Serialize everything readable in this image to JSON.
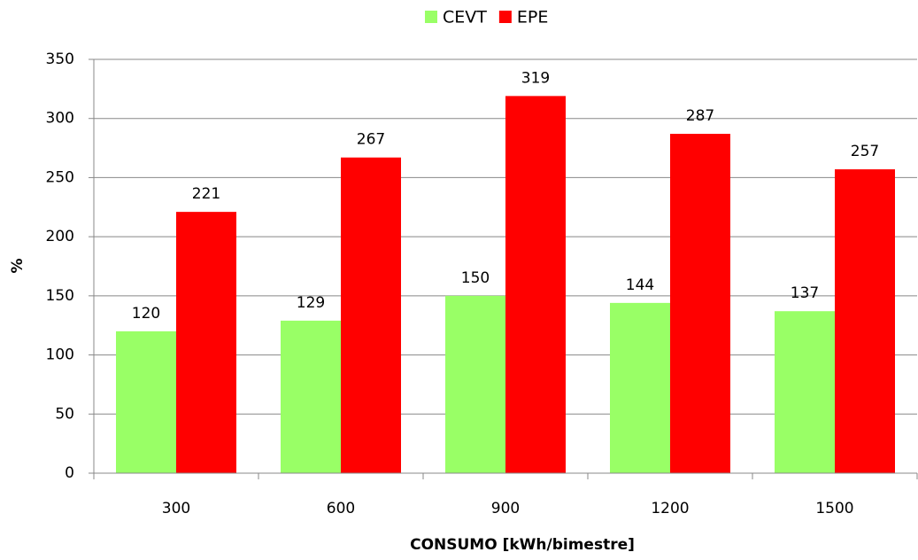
{
  "chart_data": {
    "type": "bar",
    "categories": [
      "300",
      "600",
      "900",
      "1200",
      "1500"
    ],
    "series": [
      {
        "name": "CEVT",
        "color": "#99ff66",
        "values": [
          120,
          129,
          150,
          144,
          137
        ]
      },
      {
        "name": "EPE",
        "color": "#ff0000",
        "values": [
          221,
          267,
          319,
          287,
          257
        ]
      }
    ],
    "xlabel": "CONSUMO [kWh/bimestre]",
    "ylabel": "%",
    "ylim": [
      0,
      350
    ],
    "yticks": [
      0,
      50,
      100,
      150,
      200,
      250,
      300,
      350
    ],
    "grid": true,
    "legend": "top"
  }
}
